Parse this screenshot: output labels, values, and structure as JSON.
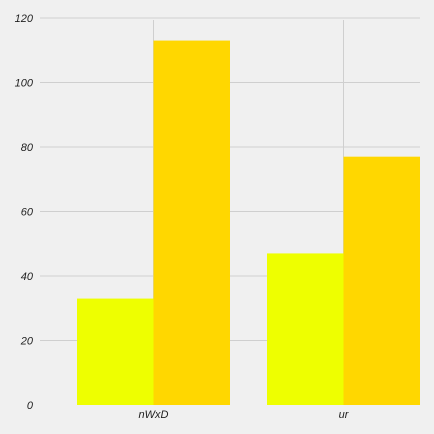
{
  "chart_data": {
    "type": "bar",
    "categories": [
      "nWxD",
      "ur"
    ],
    "series": [
      {
        "values": [
          33,
          47
        ]
      },
      {
        "values": [
          113,
          77
        ]
      }
    ],
    "ylim": [
      0,
      120
    ],
    "yticks": [
      0,
      20,
      40,
      60,
      80,
      100,
      120
    ],
    "grid": true,
    "colors": [
      "#eeff00",
      "#ffd700"
    ]
  }
}
